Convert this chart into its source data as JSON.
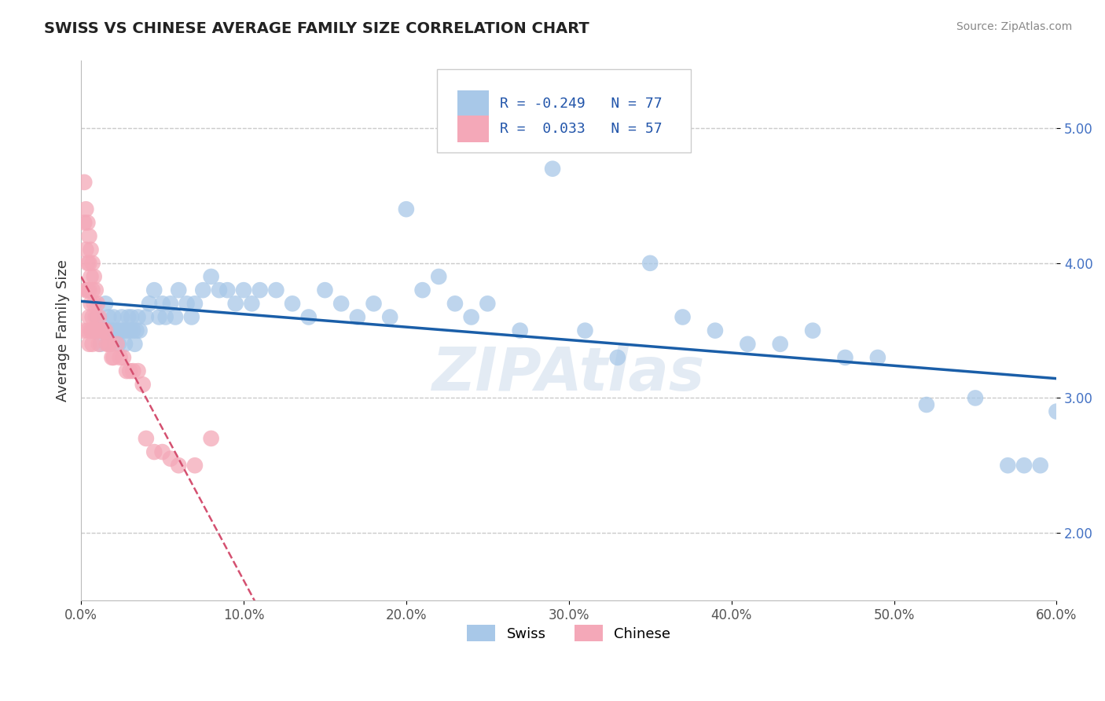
{
  "title": "SWISS VS CHINESE AVERAGE FAMILY SIZE CORRELATION CHART",
  "source": "Source: ZipAtlas.com",
  "ylabel": "Average Family Size",
  "xlim": [
    0.0,
    0.6
  ],
  "ylim": [
    1.5,
    5.5
  ],
  "yticks": [
    2.0,
    3.0,
    4.0,
    5.0
  ],
  "xticks": [
    0.0,
    0.1,
    0.2,
    0.3,
    0.4,
    0.5,
    0.6
  ],
  "xtick_labels": [
    "0.0%",
    "10.0%",
    "20.0%",
    "30.0%",
    "40.0%",
    "50.0%",
    "60.0%"
  ],
  "ytick_labels": [
    "2.00",
    "3.00",
    "4.00",
    "5.00"
  ],
  "swiss_R": -0.249,
  "swiss_N": 77,
  "chinese_R": 0.033,
  "chinese_N": 57,
  "swiss_color": "#a8c8e8",
  "chinese_color": "#f4a8b8",
  "swiss_line_color": "#1a5ea8",
  "chinese_line_color": "#d45070",
  "watermark": "ZIPAtlas",
  "background_color": "#ffffff",
  "swiss_x": [
    0.008,
    0.01,
    0.012,
    0.015,
    0.016,
    0.017,
    0.018,
    0.019,
    0.02,
    0.021,
    0.022,
    0.023,
    0.024,
    0.025,
    0.026,
    0.027,
    0.028,
    0.029,
    0.03,
    0.031,
    0.032,
    0.033,
    0.034,
    0.035,
    0.036,
    0.04,
    0.042,
    0.045,
    0.048,
    0.05,
    0.052,
    0.055,
    0.058,
    0.06,
    0.065,
    0.068,
    0.07,
    0.075,
    0.08,
    0.085,
    0.09,
    0.095,
    0.1,
    0.105,
    0.11,
    0.12,
    0.13,
    0.14,
    0.15,
    0.16,
    0.17,
    0.18,
    0.19,
    0.2,
    0.21,
    0.22,
    0.23,
    0.24,
    0.25,
    0.27,
    0.29,
    0.31,
    0.33,
    0.35,
    0.37,
    0.39,
    0.41,
    0.43,
    0.45,
    0.47,
    0.49,
    0.52,
    0.55,
    0.57,
    0.58,
    0.59,
    0.6
  ],
  "swiss_y": [
    3.5,
    3.6,
    3.4,
    3.7,
    3.5,
    3.6,
    3.4,
    3.5,
    3.6,
    3.5,
    3.5,
    3.4,
    3.5,
    3.6,
    3.5,
    3.4,
    3.5,
    3.6,
    3.5,
    3.6,
    3.5,
    3.4,
    3.5,
    3.6,
    3.5,
    3.6,
    3.7,
    3.8,
    3.6,
    3.7,
    3.6,
    3.7,
    3.6,
    3.8,
    3.7,
    3.6,
    3.7,
    3.8,
    3.9,
    3.8,
    3.8,
    3.7,
    3.8,
    3.7,
    3.8,
    3.8,
    3.7,
    3.6,
    3.8,
    3.7,
    3.6,
    3.7,
    3.6,
    4.4,
    3.8,
    3.9,
    3.7,
    3.6,
    3.7,
    3.5,
    4.7,
    3.5,
    3.3,
    4.0,
    3.6,
    3.5,
    3.4,
    3.4,
    3.5,
    3.3,
    3.3,
    2.95,
    3.0,
    2.5,
    2.5,
    2.5,
    2.9
  ],
  "chinese_x": [
    0.001,
    0.002,
    0.002,
    0.003,
    0.003,
    0.003,
    0.004,
    0.004,
    0.004,
    0.004,
    0.005,
    0.005,
    0.005,
    0.005,
    0.005,
    0.006,
    0.006,
    0.006,
    0.006,
    0.007,
    0.007,
    0.007,
    0.007,
    0.007,
    0.008,
    0.008,
    0.008,
    0.009,
    0.009,
    0.01,
    0.01,
    0.011,
    0.011,
    0.012,
    0.013,
    0.014,
    0.015,
    0.016,
    0.017,
    0.018,
    0.019,
    0.02,
    0.022,
    0.024,
    0.026,
    0.028,
    0.03,
    0.032,
    0.035,
    0.038,
    0.04,
    0.045,
    0.05,
    0.055,
    0.06,
    0.07,
    0.08
  ],
  "chinese_y": [
    3.5,
    4.6,
    4.3,
    4.4,
    4.1,
    3.8,
    4.3,
    4.0,
    3.8,
    3.5,
    4.2,
    4.0,
    3.8,
    3.6,
    3.4,
    4.1,
    3.9,
    3.7,
    3.5,
    4.0,
    3.8,
    3.6,
    3.5,
    3.4,
    3.9,
    3.7,
    3.5,
    3.8,
    3.6,
    3.7,
    3.5,
    3.6,
    3.4,
    3.5,
    3.5,
    3.5,
    3.5,
    3.4,
    3.4,
    3.4,
    3.3,
    3.3,
    3.4,
    3.3,
    3.3,
    3.2,
    3.2,
    3.2,
    3.2,
    3.1,
    2.7,
    2.6,
    2.6,
    2.55,
    2.5,
    2.5,
    2.7
  ]
}
